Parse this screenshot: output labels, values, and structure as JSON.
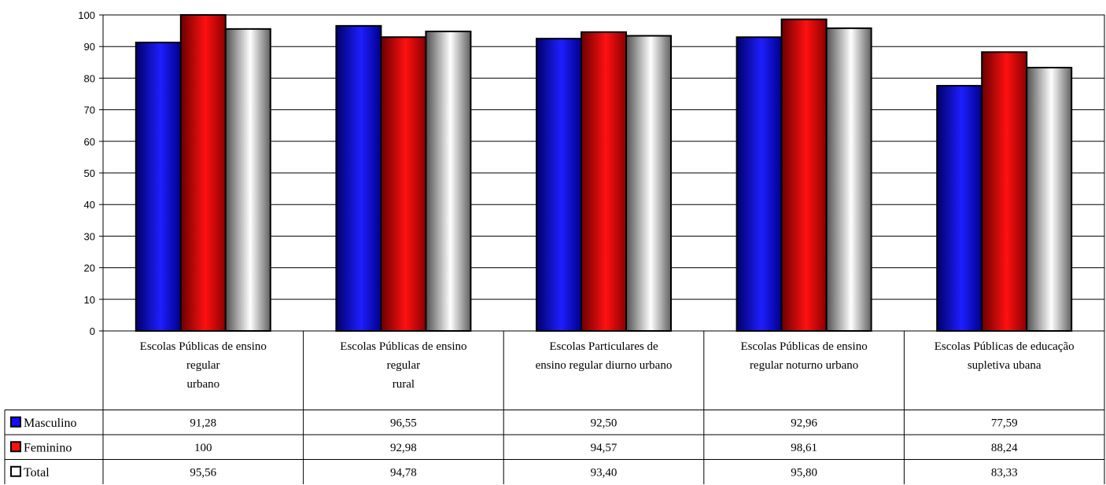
{
  "chart_data": {
    "type": "bar",
    "categories": [
      [
        "Escolas Públicas de ensino",
        "regular",
        "urbano"
      ],
      [
        "Escolas Públicas de ensino",
        "regular",
        "rural"
      ],
      [
        "Escolas Particulares de",
        "ensino regular diurno urbano"
      ],
      [
        "Escolas Públicas de ensino",
        "regular noturno urbano"
      ],
      [
        "Escolas Públicas de educação",
        "supletiva ubana"
      ]
    ],
    "series": [
      {
        "name": "Masculino",
        "values": [
          91.28,
          96.55,
          92.5,
          92.96,
          77.59
        ],
        "labels": [
          "91,28",
          "96,55",
          "92,50",
          "92,96",
          "77,59"
        ],
        "color": "#1010ff"
      },
      {
        "name": "Feminino",
        "values": [
          100,
          92.98,
          94.57,
          98.61,
          88.24
        ],
        "labels": [
          "100",
          "92,98",
          "94,57",
          "98,61",
          "88,24"
        ],
        "color": "#ff1010"
      },
      {
        "name": "Total",
        "values": [
          95.56,
          94.78,
          93.4,
          95.8,
          83.33
        ],
        "labels": [
          "95,56",
          "94,78",
          "93,40",
          "95,80",
          "83,33"
        ],
        "color": "#ffffff"
      }
    ],
    "ylim": [
      0,
      100
    ],
    "yticks": [
      0,
      10,
      20,
      30,
      40,
      50,
      60,
      70,
      80,
      90,
      100
    ],
    "grid": true,
    "legend": "data-table-left"
  }
}
